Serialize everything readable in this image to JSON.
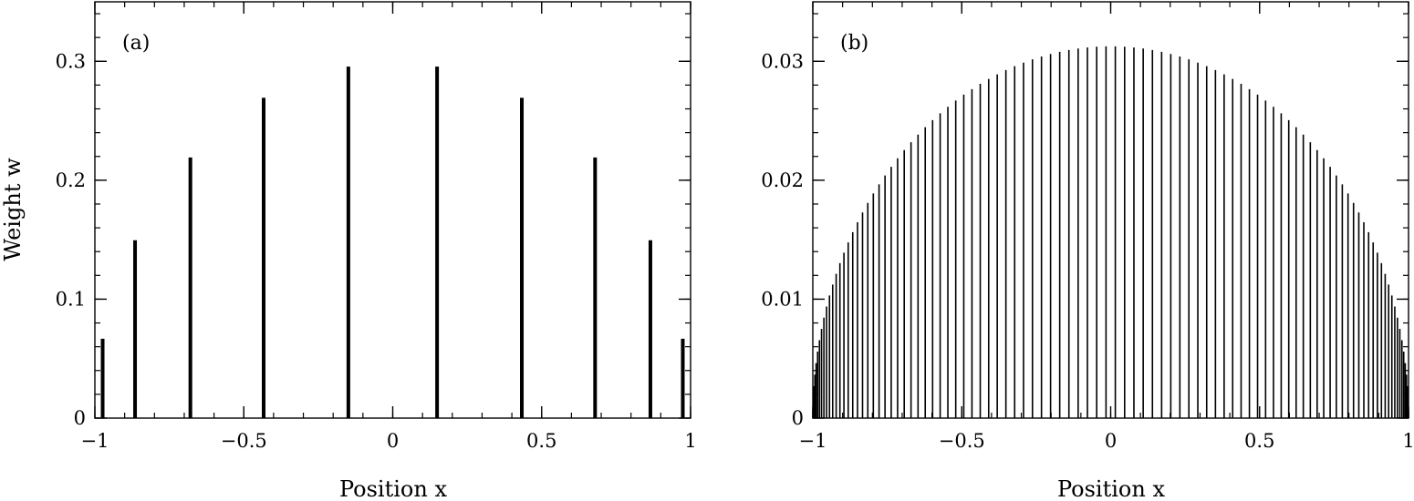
{
  "figure": {
    "ylabel_left": "Weight w",
    "colors": {
      "stem": "#000000",
      "frame": "#000000",
      "background": "#ffffff"
    }
  },
  "chart_data": [
    {
      "type": "bar",
      "subtype": "stem",
      "panel_label": "(a)",
      "xlabel": "Position x",
      "ylabel": "Weight w",
      "xlim": [
        -1,
        1
      ],
      "ylim": [
        0,
        0.35
      ],
      "x_ticks": [
        -1,
        -0.5,
        0,
        0.5,
        1
      ],
      "x_tick_labels": [
        "−1",
        "−0.5",
        "0",
        "0.5",
        "1"
      ],
      "y_ticks": [
        0,
        0.1,
        0.2,
        0.3
      ],
      "y_tick_labels": [
        "0",
        "0.1",
        "0.2",
        "0.3"
      ],
      "grid": false,
      "x": [
        -0.9739,
        -0.8651,
        -0.6794,
        -0.4334,
        -0.1489,
        0.1489,
        0.4334,
        0.6794,
        0.8651,
        0.9739
      ],
      "values": [
        0.0667,
        0.1495,
        0.2191,
        0.2693,
        0.2955,
        0.2955,
        0.2693,
        0.2191,
        0.1495,
        0.0667
      ]
    },
    {
      "type": "bar",
      "subtype": "stem",
      "panel_label": "(b)",
      "xlabel": "Position x",
      "ylabel": "",
      "xlim": [
        -1,
        1
      ],
      "ylim": [
        0,
        0.035
      ],
      "x_ticks": [
        -1,
        -0.5,
        0,
        0.5,
        1
      ],
      "x_tick_labels": [
        "−1",
        "−0.5",
        "0",
        "0.5",
        "1"
      ],
      "y_ticks": [
        0,
        0.01,
        0.02,
        0.03
      ],
      "y_tick_labels": [
        "0",
        "0.01",
        "0.02",
        "0.03"
      ],
      "grid": false,
      "n_points": 100,
      "description_of_values": "Gauss–Legendre nodes x_i in (-1,1), heights w_i peaking near 0.0313 at x=0",
      "x": [],
      "values": []
    }
  ]
}
